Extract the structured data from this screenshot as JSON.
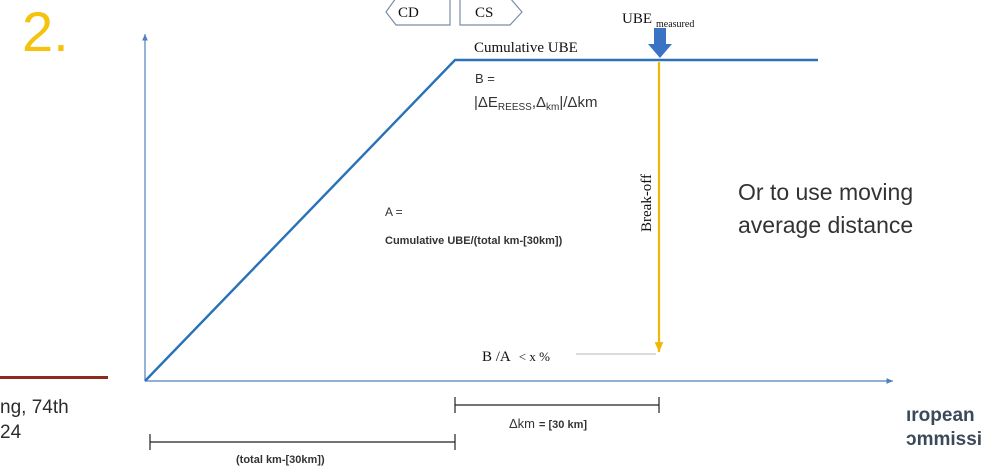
{
  "slide": {
    "number": "2."
  },
  "footer": {
    "line1": "ng, 74th",
    "line2": "24",
    "rule_color": "#8b2a1e"
  },
  "side_note": {
    "line1": "Or to use moving",
    "line2": "average distance"
  },
  "logo": {
    "line1": "ıropean",
    "line2": "ɔmmissi"
  },
  "diagram": {
    "tabs": {
      "left": "CD",
      "right": "CS"
    },
    "ube_measured": {
      "main": "UBE",
      "sub": "measured"
    },
    "cumulative_label": "Cumulative UBE",
    "b_definition": {
      "line1": "B =",
      "line2_prefix": "|ΔE",
      "line2_sub1": "REESS",
      "line2_mid": ",Δ",
      "line2_sub2": "km",
      "line2_suffix": "|/Δkm"
    },
    "a_definition": {
      "line1": "A =",
      "line2": "Cumulative UBE/(total km-[30km])"
    },
    "break_off": "Break-off",
    "ratio": {
      "main": "B /A",
      "condition": "< x %"
    },
    "delta_km": {
      "prefix": "Δkm",
      "value": "= [30 km]"
    },
    "total_km": "(total km-[30km])",
    "colors": {
      "line": "#2a72b8",
      "axis": "#4f81bd",
      "arrow": "#3b73c4",
      "break_off_line": "#f2b705",
      "slide_number": "#f6c20e"
    }
  }
}
